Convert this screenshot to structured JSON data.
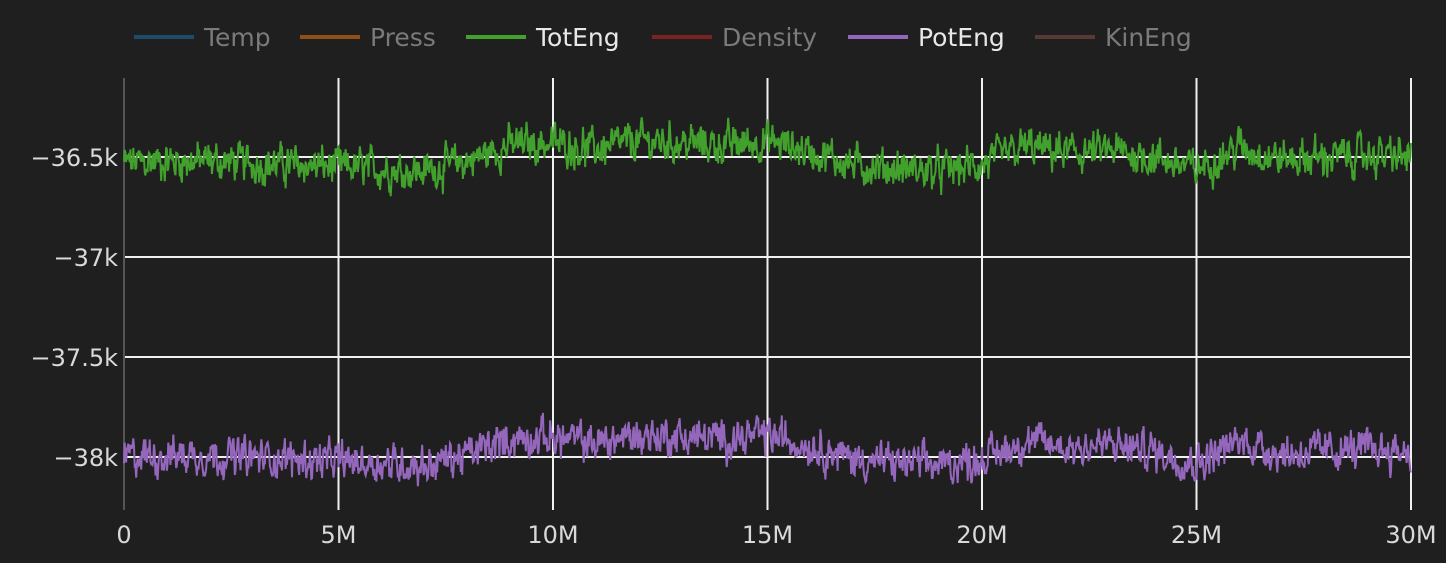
{
  "chart_data": {
    "type": "line",
    "title": "",
    "xlabel": "",
    "ylabel": "",
    "xlim": [
      0,
      30000000
    ],
    "ylim": [
      -38265,
      -36105
    ],
    "grid": true,
    "legend_position": "top",
    "x_ticks": [
      0,
      5000000,
      10000000,
      15000000,
      20000000,
      25000000,
      30000000
    ],
    "x_tick_labels": [
      "0",
      "5M",
      "10M",
      "15M",
      "20M",
      "25M",
      "30M"
    ],
    "y_ticks": [
      -36500,
      -37000,
      -37500,
      -38000
    ],
    "y_tick_labels": [
      "−36.5k",
      "−37k",
      "−37.5k",
      "−38k"
    ],
    "legend": [
      {
        "name": "Temp",
        "color": "#1f77b4",
        "visible": false
      },
      {
        "name": "Press",
        "color": "#ff7f0e",
        "visible": false
      },
      {
        "name": "TotEng",
        "color": "#42a12c",
        "visible": true
      },
      {
        "name": "Density",
        "color": "#d62728",
        "visible": false
      },
      {
        "name": "PotEng",
        "color": "#9467bd",
        "visible": true
      },
      {
        "name": "KinEng",
        "color": "#8c564b",
        "visible": false
      }
    ],
    "x_step": 1000000,
    "noise_amplitude": 75,
    "series": [
      {
        "name": "TotEng",
        "color": "#42a12c",
        "values": [
          -36530,
          -36520,
          -36520,
          -36530,
          -36540,
          -36550,
          -36560,
          -36570,
          -36520,
          -36440,
          -36430,
          -36460,
          -36420,
          -36430,
          -36440,
          -36420,
          -36470,
          -36540,
          -36560,
          -36570,
          -36540,
          -36450,
          -36480,
          -36470,
          -36500,
          -36560,
          -36450,
          -36510,
          -36500,
          -36490,
          -36500
        ]
      },
      {
        "name": "PotEng",
        "color": "#9467bd",
        "values": [
          -38000,
          -37990,
          -37990,
          -38000,
          -38010,
          -38020,
          -38030,
          -38040,
          -37990,
          -37910,
          -37900,
          -37930,
          -37890,
          -37900,
          -37910,
          -37890,
          -37940,
          -38010,
          -38030,
          -38040,
          -38010,
          -37920,
          -37950,
          -37940,
          -37970,
          -38030,
          -37920,
          -37980,
          -37970,
          -37960,
          -37970
        ]
      }
    ]
  }
}
